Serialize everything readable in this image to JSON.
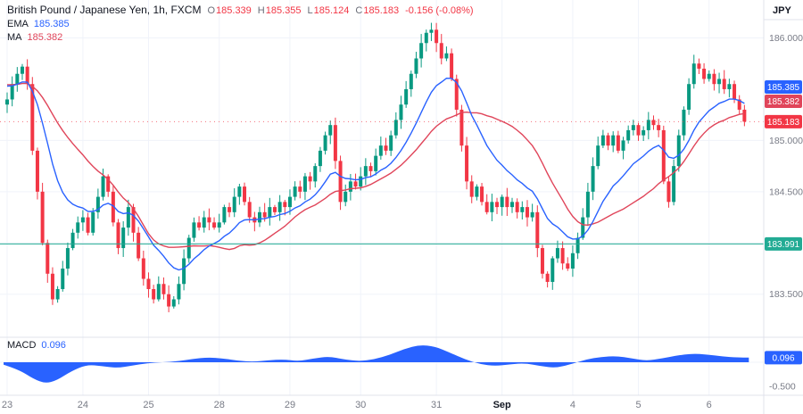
{
  "header": {
    "symbol": "British Pound / Japanese Yen, 1h, FXCM",
    "ohlc": {
      "o_label": "O",
      "o": "185.339",
      "h_label": "H",
      "h": "185.355",
      "l_label": "L",
      "l": "185.124",
      "c_label": "C",
      "c": "185.183",
      "change": "-0.156 (-0.08%)"
    },
    "ema_label": "EMA",
    "ema_value": "185.385",
    "ma_label": "MA",
    "ma_value": "185.382"
  },
  "price_axis": {
    "currency": "JPY",
    "ticks": [
      {
        "label": "186.000",
        "price": 186.0
      },
      {
        "label": "185.000",
        "price": 185.0
      },
      {
        "label": "184.500",
        "price": 184.5
      },
      {
        "label": "183.500",
        "price": 183.5
      }
    ],
    "badges": [
      {
        "label": "185.385",
        "price": 185.385,
        "color": "#2962ff"
      },
      {
        "label": "185.382",
        "price": 185.382,
        "color": "#e0455a"
      },
      {
        "label": "185.183",
        "price": 185.183,
        "color": "#f23645"
      },
      {
        "label": "183.991",
        "price": 183.991,
        "color": "#22ab94"
      }
    ]
  },
  "time_axis": {
    "labels": [
      {
        "text": "23",
        "i": 0
      },
      {
        "text": "24",
        "i": 15
      },
      {
        "text": "25",
        "i": 28
      },
      {
        "text": "28",
        "i": 42
      },
      {
        "text": "29",
        "i": 56
      },
      {
        "text": "30",
        "i": 70
      },
      {
        "text": "31",
        "i": 85
      },
      {
        "text": "Sep",
        "i": 98,
        "bold": true
      },
      {
        "text": "4",
        "i": 112
      },
      {
        "text": "5",
        "i": 125
      },
      {
        "text": "6",
        "i": 139
      }
    ]
  },
  "macd_pane": {
    "name": "MACD",
    "value": "0.096",
    "badge": {
      "label": "0.096",
      "value": 0.096,
      "color": "#2962ff"
    },
    "tick": "-0.500"
  },
  "chart_data": {
    "type": "candlestick",
    "title": "British Pound / Japanese Yen, 1h, FXCM",
    "price_range": [
      183.08,
      186.37
    ],
    "grid_prices": [
      186.0,
      185.0,
      184.5,
      184.0,
      183.5
    ],
    "hline_price": 183.991,
    "last_price": 185.183,
    "first_open": 185.35,
    "prehistory_price": 185.55,
    "ema_period": 14,
    "ma_period": 24,
    "day_start_indices": [
      0,
      15,
      28,
      42,
      56,
      70,
      85,
      98,
      112,
      125,
      139
    ],
    "closes": [
      185.4,
      185.55,
      185.65,
      185.72,
      185.55,
      184.9,
      184.5,
      184.0,
      183.7,
      183.45,
      183.55,
      183.75,
      183.95,
      184.1,
      184.2,
      184.25,
      184.1,
      184.3,
      184.45,
      184.65,
      184.5,
      184.2,
      183.95,
      184.15,
      184.35,
      184.1,
      183.85,
      183.65,
      183.55,
      183.45,
      183.6,
      183.5,
      183.38,
      183.45,
      183.6,
      183.85,
      184.05,
      184.2,
      184.15,
      184.25,
      184.2,
      184.15,
      184.2,
      184.35,
      184.3,
      184.45,
      184.55,
      184.4,
      184.25,
      184.2,
      184.3,
      184.25,
      184.35,
      184.3,
      184.4,
      184.35,
      184.45,
      184.55,
      184.5,
      184.65,
      184.6,
      184.75,
      184.9,
      185.05,
      185.15,
      184.8,
      184.4,
      184.5,
      184.6,
      184.55,
      184.65,
      184.75,
      184.7,
      184.85,
      184.95,
      184.9,
      185.05,
      185.2,
      185.35,
      185.5,
      185.65,
      185.8,
      185.95,
      186.05,
      186.08,
      185.95,
      185.8,
      185.85,
      185.6,
      185.3,
      184.95,
      184.6,
      184.45,
      184.55,
      184.4,
      184.3,
      184.4,
      184.35,
      184.45,
      184.35,
      184.4,
      184.3,
      184.35,
      184.25,
      184.3,
      183.95,
      183.7,
      183.62,
      183.85,
      183.95,
      183.8,
      183.75,
      183.9,
      184.05,
      184.25,
      184.5,
      184.75,
      184.95,
      185.05,
      184.95,
      185.05,
      184.9,
      185.0,
      185.1,
      185.15,
      185.05,
      185.1,
      185.2,
      185.15,
      185.1,
      184.6,
      184.4,
      184.75,
      185.05,
      185.3,
      185.55,
      185.75,
      185.7,
      185.6,
      185.65,
      185.55,
      185.6,
      185.5,
      185.55,
      185.4,
      185.3,
      185.183
    ],
    "macd": {
      "range": [
        -0.5,
        0.4
      ],
      "points": [
        [
          0.0,
          -0.05
        ],
        [
          0.02,
          -0.15
        ],
        [
          0.04,
          -0.35
        ],
        [
          0.055,
          -0.44
        ],
        [
          0.07,
          -0.38
        ],
        [
          0.09,
          -0.18
        ],
        [
          0.11,
          -0.05
        ],
        [
          0.13,
          -0.08
        ],
        [
          0.15,
          -0.12
        ],
        [
          0.17,
          -0.07
        ],
        [
          0.19,
          -0.02
        ],
        [
          0.21,
          0.0
        ],
        [
          0.23,
          0.02
        ],
        [
          0.25,
          0.07
        ],
        [
          0.27,
          0.1
        ],
        [
          0.29,
          0.08
        ],
        [
          0.31,
          0.03
        ],
        [
          0.33,
          0.01
        ],
        [
          0.35,
          0.04
        ],
        [
          0.37,
          0.06
        ],
        [
          0.39,
          0.02
        ],
        [
          0.41,
          0.08
        ],
        [
          0.43,
          0.12
        ],
        [
          0.45,
          0.06
        ],
        [
          0.47,
          0.02
        ],
        [
          0.49,
          0.06
        ],
        [
          0.51,
          0.15
        ],
        [
          0.53,
          0.28
        ],
        [
          0.55,
          0.36
        ],
        [
          0.57,
          0.33
        ],
        [
          0.59,
          0.2
        ],
        [
          0.61,
          0.06
        ],
        [
          0.63,
          -0.04
        ],
        [
          0.65,
          -0.08
        ],
        [
          0.67,
          -0.04
        ],
        [
          0.69,
          -0.02
        ],
        [
          0.71,
          -0.08
        ],
        [
          0.73,
          -0.12
        ],
        [
          0.75,
          -0.04
        ],
        [
          0.77,
          0.06
        ],
        [
          0.79,
          0.11
        ],
        [
          0.81,
          0.13
        ],
        [
          0.83,
          0.08
        ],
        [
          0.85,
          0.03
        ],
        [
          0.87,
          0.08
        ],
        [
          0.89,
          0.14
        ],
        [
          0.91,
          0.18
        ],
        [
          0.93,
          0.16
        ],
        [
          0.95,
          0.12
        ],
        [
          0.97,
          0.1
        ],
        [
          0.985,
          0.096
        ]
      ]
    }
  },
  "colors": {
    "up": "#089981",
    "down": "#f23645",
    "ema": "#2962ff",
    "ma": "#e0455a",
    "hline": "#22ab94",
    "macd_fill": "#2962ff",
    "grid": "#f0f3fa",
    "axis_border": "#e0e3eb",
    "axis_text": "#787b86",
    "text": "#131722"
  }
}
